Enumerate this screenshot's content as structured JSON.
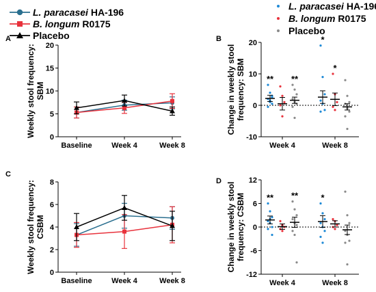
{
  "colors": {
    "lp": "#2a6f8f",
    "bl": "#e8323c",
    "pl": "#000000",
    "lp_dot": "#1f8ad6",
    "bl_dot": "#e8323c",
    "pl_dot": "#8a8a8a"
  },
  "legend_left": {
    "items": [
      {
        "species": "L. paracasei",
        "strain": " HA-196"
      },
      {
        "species": "B. longum",
        "strain": " R0175"
      },
      {
        "species": "",
        "strain": "Placebo"
      }
    ]
  },
  "legend_right": {
    "items": [
      {
        "species": "L. paracasei",
        "strain": " HA-196"
      },
      {
        "species": "B. longum",
        "strain": " R0175"
      },
      {
        "species": "",
        "strain": "Placebo"
      }
    ]
  },
  "chart_data": [
    {
      "panel": "A",
      "type": "line",
      "ylabel": "Weekly stool frequency:\nSBM",
      "categories": [
        "Baseline",
        "Week 4",
        "Week 8"
      ],
      "ylim": [
        0,
        20
      ],
      "yticks": [
        "0",
        "5",
        "10",
        "15",
        "20"
      ],
      "series": [
        {
          "name": "L. paracasei HA-196",
          "values": [
            5.3,
            6.9,
            7.4
          ],
          "err": [
            1.2,
            1.1,
            1.3
          ]
        },
        {
          "name": "B. longum R0175",
          "values": [
            5.3,
            6.3,
            7.8
          ],
          "err": [
            1.2,
            1.2,
            1.6
          ]
        },
        {
          "name": "Placebo",
          "values": [
            6.3,
            7.9,
            5.6
          ],
          "err": [
            1.3,
            1.2,
            0.9
          ]
        }
      ]
    },
    {
      "panel": "B",
      "type": "scatter",
      "ylabel": "Change in weekly stool\nfrequency: SBM",
      "categories": [
        "Week 4",
        "Week 8"
      ],
      "ylim": [
        -10,
        20
      ],
      "yticks": [
        "-10",
        "0",
        "10",
        "20"
      ],
      "baseline": 0,
      "groups": [
        {
          "category": 0,
          "series": 0,
          "mean": 2.2,
          "err": 1.0,
          "sig": "**",
          "points": [
            6.5,
            4.0,
            3.0,
            2.0,
            1.5,
            0.5,
            -0.5,
            1.0,
            2.5
          ]
        },
        {
          "category": 0,
          "series": 1,
          "mean": 0.5,
          "err": 2.0,
          "sig": "",
          "points": [
            6.0,
            3.0,
            1.0,
            0.0,
            -3.5
          ]
        },
        {
          "category": 0,
          "series": 2,
          "mean": 1.6,
          "err": 1.0,
          "sig": "**",
          "points": [
            6.5,
            5.0,
            3.5,
            2.0,
            1.0,
            0.5,
            -0.5,
            -4.0
          ]
        },
        {
          "category": 1,
          "series": 0,
          "mean": 2.6,
          "err": 2.0,
          "sig": "*",
          "points": [
            19.0,
            9.0,
            3.5,
            1.5,
            0.5,
            -1.5,
            -2.0
          ]
        },
        {
          "category": 1,
          "series": 1,
          "mean": 1.9,
          "err": 2.0,
          "sig": "*",
          "points": [
            10.0,
            3.5,
            1.0,
            -0.5,
            -1.5
          ]
        },
        {
          "category": 1,
          "series": 2,
          "mean": -0.5,
          "err": 1.0,
          "sig": "",
          "points": [
            8.0,
            3.0,
            1.0,
            0.5,
            -1.0,
            -2.0,
            -3.5,
            -7.5
          ]
        }
      ]
    },
    {
      "panel": "C",
      "type": "line",
      "ylabel": "Weekly stool frequency:\nCSBM",
      "categories": [
        "Baseline",
        "Week 4",
        "Week 8"
      ],
      "ylim": [
        0,
        8
      ],
      "yticks": [
        "0",
        "2",
        "4",
        "6",
        "8"
      ],
      "series": [
        {
          "name": "L. paracasei HA-196",
          "values": [
            3.3,
            5.0,
            4.8
          ],
          "err": [
            1.0,
            1.1,
            1.0
          ]
        },
        {
          "name": "B. longum R0175",
          "values": [
            3.3,
            3.6,
            4.2
          ],
          "err": [
            1.1,
            1.5,
            1.6
          ]
        },
        {
          "name": "Placebo",
          "values": [
            4.0,
            5.7,
            4.1
          ],
          "err": [
            1.2,
            1.1,
            1.3
          ]
        }
      ]
    },
    {
      "panel": "D",
      "type": "scatter",
      "ylabel": "Change in weekly stool\nfrequency: CSBM",
      "categories": [
        "Week 4",
        "Week 8"
      ],
      "ylim": [
        -12,
        12
      ],
      "yticks": [
        "-12",
        "-6",
        "0",
        "6",
        "12"
      ],
      "baseline": 0,
      "groups": [
        {
          "category": 0,
          "series": 0,
          "mean": 1.8,
          "err": 1.0,
          "sig": "**",
          "points": [
            6.0,
            4.0,
            2.5,
            1.5,
            1.0,
            0.0,
            -0.5,
            2.0,
            -2.0
          ]
        },
        {
          "category": 0,
          "series": 1,
          "mean": 0.1,
          "err": 0.7,
          "sig": "",
          "points": [
            1.5,
            0.5,
            0.0,
            -0.5,
            -1.0
          ]
        },
        {
          "category": 0,
          "series": 2,
          "mean": 1.2,
          "err": 1.3,
          "sig": "**",
          "points": [
            6.5,
            4.5,
            3.0,
            2.0,
            1.0,
            0.5,
            -1.0,
            -2.0,
            -9.0
          ]
        },
        {
          "category": 1,
          "series": 0,
          "mean": 1.4,
          "err": 1.5,
          "sig": "*",
          "points": [
            6.0,
            3.5,
            2.0,
            1.0,
            0.0,
            -1.0,
            -2.5,
            -4.0
          ]
        },
        {
          "category": 1,
          "series": 1,
          "mean": 0.8,
          "err": 0.8,
          "sig": "",
          "points": [
            2.0,
            1.5,
            0.5,
            0.0,
            -0.5
          ]
        },
        {
          "category": 1,
          "series": 2,
          "mean": -0.7,
          "err": 1.2,
          "sig": "",
          "points": [
            9.0,
            3.0,
            1.0,
            -1.0,
            -2.0,
            -3.5,
            -4.0,
            -9.5
          ]
        }
      ]
    }
  ]
}
